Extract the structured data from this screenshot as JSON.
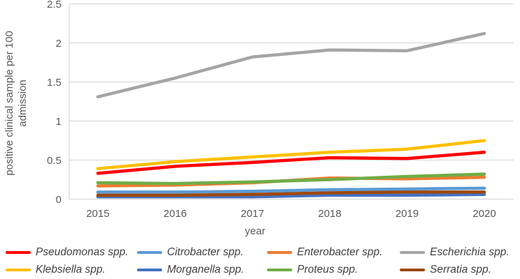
{
  "chart_data": {
    "type": "line",
    "title": "",
    "xlabel": "year",
    "ylabel": "positive clinical sample per 100 admission",
    "ylabel_lines": [
      "positive clinical sample per 100",
      "admission"
    ],
    "x": [
      2015,
      2016,
      2017,
      2018,
      2019,
      2020
    ],
    "ylim": [
      0,
      2.5
    ],
    "yticks": [
      0,
      0.5,
      1,
      1.5,
      2,
      2.5
    ],
    "grid": true,
    "legend_position": "bottom",
    "series": [
      {
        "name": "Pseudomonas spp.",
        "color": "#FF0000",
        "values": [
          0.33,
          0.42,
          0.47,
          0.53,
          0.52,
          0.6
        ]
      },
      {
        "name": "Citrobacter spp.",
        "color": "#5B9BD5",
        "values": [
          0.09,
          0.09,
          0.1,
          0.12,
          0.13,
          0.14
        ]
      },
      {
        "name": "Enterobacter spp.",
        "color": "#ED7D31",
        "values": [
          0.17,
          0.18,
          0.21,
          0.27,
          0.26,
          0.28
        ]
      },
      {
        "name": "Escherichia spp.",
        "color": "#A5A5A5",
        "values": [
          1.31,
          1.55,
          1.82,
          1.91,
          1.9,
          2.12
        ]
      },
      {
        "name": "Klebsiella spp.",
        "color": "#FFC000",
        "values": [
          0.39,
          0.48,
          0.54,
          0.6,
          0.64,
          0.75
        ]
      },
      {
        "name": "Morganella spp.",
        "color": "#4472C4",
        "values": [
          0.03,
          0.03,
          0.03,
          0.05,
          0.05,
          0.06
        ]
      },
      {
        "name": "Proteus spp.",
        "color": "#70AD47",
        "values": [
          0.21,
          0.2,
          0.22,
          0.25,
          0.29,
          0.32
        ]
      },
      {
        "name": "Serratia spp.",
        "color": "#9E480E",
        "values": [
          0.05,
          0.05,
          0.06,
          0.08,
          0.09,
          0.09
        ]
      }
    ],
    "legend_order": [
      "Pseudomonas spp.",
      "Citrobacter spp.",
      "Enterobacter spp.",
      "Escherichia spp.",
      "Klebsiella spp.",
      "Morganella spp.",
      "Proteus spp.",
      "Serratia spp."
    ]
  },
  "colors": {
    "gridline": "#D9D9D9",
    "axis_line": "#D9D9D9",
    "tick_label": "#595959",
    "legend_text": "#404040",
    "background": "#FFFFFF"
  }
}
